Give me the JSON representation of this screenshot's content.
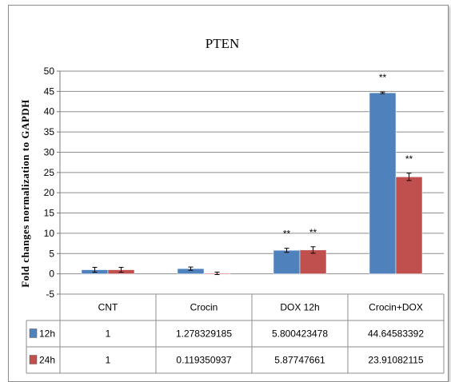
{
  "chart_data": {
    "type": "bar",
    "title": "PTEN",
    "ylabel": "Fold changes normalization to GAPDH",
    "xlabel": "",
    "ylim": [
      -5,
      50
    ],
    "yticks": [
      -5,
      0,
      5,
      10,
      15,
      20,
      25,
      30,
      35,
      40,
      45,
      50
    ],
    "grid": true,
    "legend": "table",
    "categories": [
      "CNT",
      "Crocin",
      "DOX 12h",
      "Crocin+DOX"
    ],
    "series": [
      {
        "name": "12h",
        "color": "#4f81bd",
        "values": [
          1,
          1.278329185,
          5.800423478,
          44.64583392
        ],
        "table_values": [
          "1",
          "1.278329185",
          "5.800423478",
          "44.64583392"
        ],
        "errors": [
          0.6,
          0.4,
          0.5,
          0.2
        ],
        "annotations": [
          "",
          "",
          "**",
          "**"
        ]
      },
      {
        "name": "24h",
        "color": "#c0504d",
        "values": [
          1,
          0.119350937,
          5.87747661,
          23.91082115
        ],
        "table_values": [
          "1",
          "0.119350937",
          "5.87747661",
          "23.91082115"
        ],
        "errors": [
          0.6,
          0.3,
          0.8,
          0.9
        ],
        "annotations": [
          "",
          "",
          "**",
          "**"
        ]
      }
    ]
  }
}
